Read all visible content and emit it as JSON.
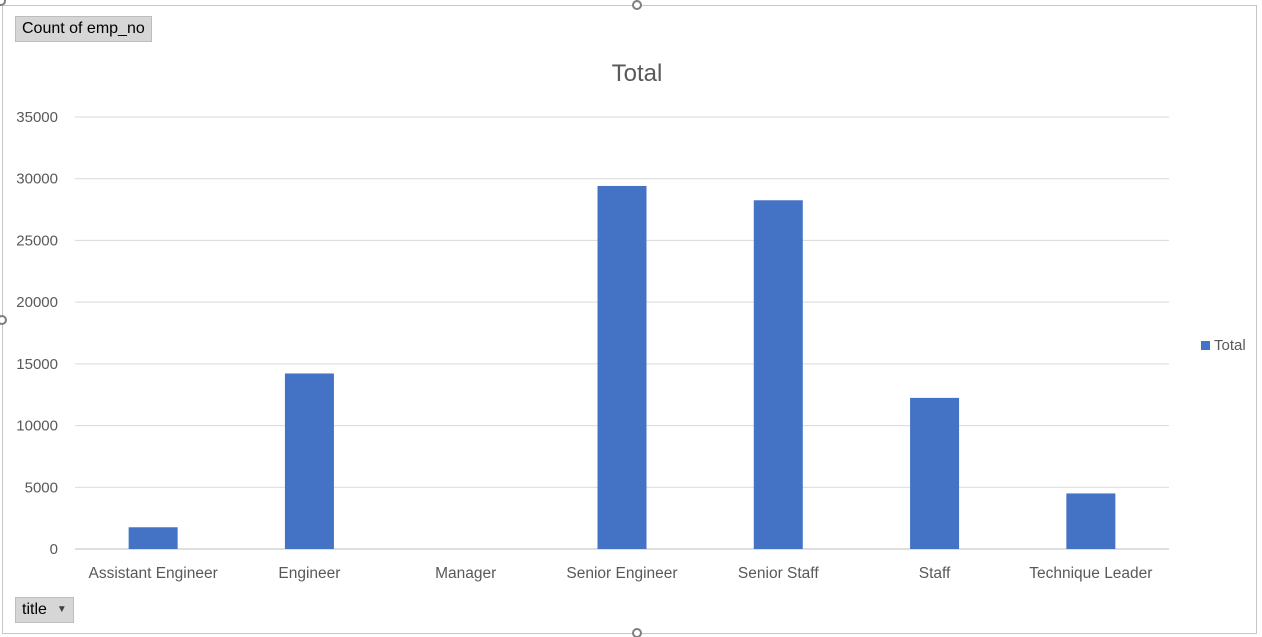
{
  "pivot": {
    "measure_button_label": "Count of emp_no",
    "axis_field_button_label": "title"
  },
  "colors": {
    "bar": "#4472c4",
    "gridline": "#d9d9d9",
    "text": "#595959"
  },
  "chart_data": {
    "type": "bar",
    "title": "Total",
    "xlabel": "",
    "ylabel": "",
    "ylim": [
      0,
      35000
    ],
    "yticks": [
      0,
      5000,
      10000,
      15000,
      20000,
      25000,
      30000,
      35000
    ],
    "grid": true,
    "legend_position": "right",
    "categories": [
      "Assistant Engineer",
      "Engineer",
      "Manager",
      "Senior Engineer",
      "Senior Staff",
      "Staff",
      "Technique Leader"
    ],
    "series": [
      {
        "name": "Total",
        "values": [
          1761,
          14221,
          2,
          29414,
          28254,
          12243,
          4502
        ]
      }
    ]
  }
}
